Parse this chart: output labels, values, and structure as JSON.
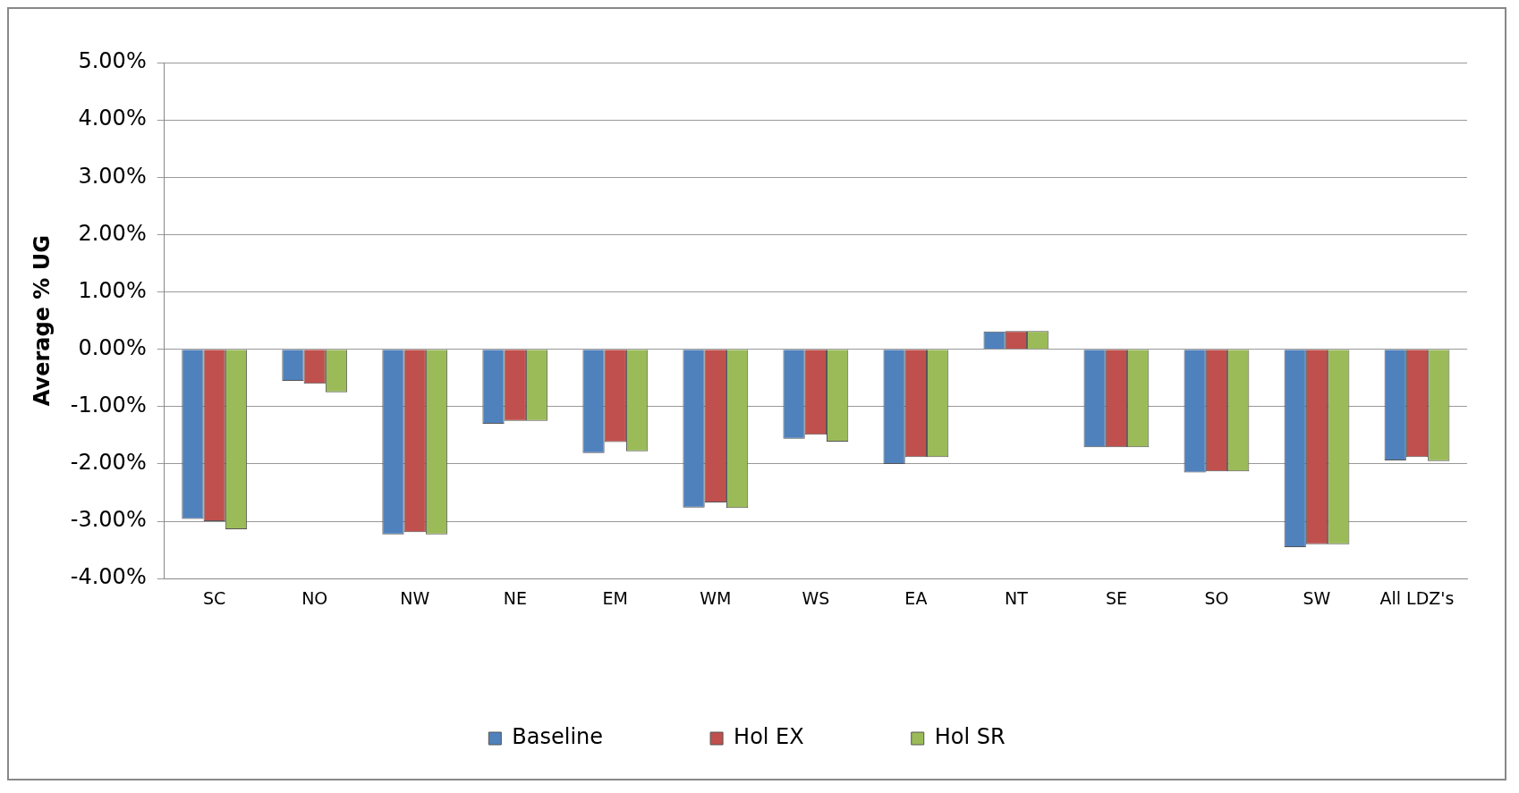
{
  "chart_data": {
    "type": "bar",
    "ylabel": "Average % UG",
    "categories": [
      "SC",
      "NO",
      "NW",
      "NE",
      "EM",
      "WM",
      "WS",
      "EA",
      "NT",
      "SE",
      "SO",
      "SW",
      "All LDZ's"
    ],
    "series": [
      {
        "name": "Baseline",
        "color": "#4f81bd",
        "values": [
          -2.96,
          -0.55,
          -3.23,
          -1.3,
          -1.81,
          -2.76,
          -1.56,
          -2.0,
          0.31,
          -1.71,
          -2.15,
          -3.45,
          -1.94
        ]
      },
      {
        "name": "Hol EX",
        "color": "#c0504d",
        "values": [
          -3.0,
          -0.6,
          -3.19,
          -1.25,
          -1.62,
          -2.67,
          -1.49,
          -1.88,
          0.32,
          -1.71,
          -2.13,
          -3.4,
          -1.88
        ]
      },
      {
        "name": "Hol SR",
        "color": "#9bbb59",
        "values": [
          -3.14,
          -0.75,
          -3.23,
          -1.25,
          -1.78,
          -2.77,
          -1.61,
          -1.88,
          0.32,
          -1.71,
          -2.13,
          -3.4,
          -1.95
        ]
      }
    ],
    "ylim": [
      -4,
      5
    ],
    "yticks": [
      {
        "value": -4,
        "label": "-4.00%"
      },
      {
        "value": -3,
        "label": "-3.00%"
      },
      {
        "value": -2,
        "label": "-2.00%"
      },
      {
        "value": -1,
        "label": "-1.00%"
      },
      {
        "value": 0,
        "label": "0.00%"
      },
      {
        "value": 1,
        "label": "1.00%"
      },
      {
        "value": 2,
        "label": "2.00%"
      },
      {
        "value": 3,
        "label": "3.00%"
      },
      {
        "value": 4,
        "label": "4.00%"
      },
      {
        "value": 5,
        "label": "5.00%"
      }
    ],
    "grid": "y",
    "legend": "bottom"
  }
}
